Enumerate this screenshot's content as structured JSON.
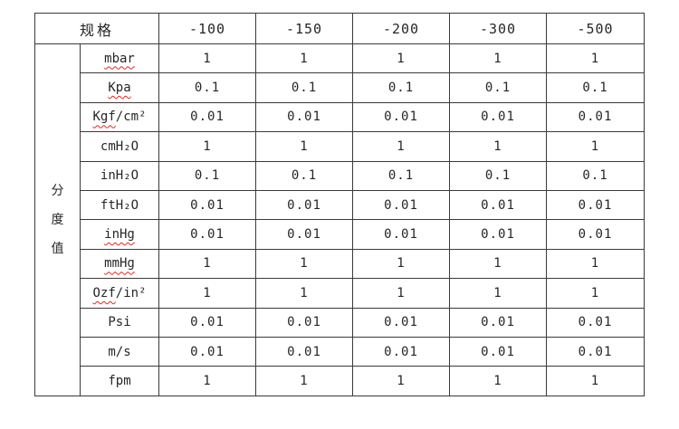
{
  "document": {
    "colors": {
      "background": "#ffffff",
      "border": "#3a3a3a",
      "text": "#262626",
      "squiggle": "#e8251a"
    },
    "table": {
      "spec_header": "规格",
      "columns": [
        "-100",
        "-150",
        "-200",
        "-300",
        "-500"
      ],
      "group_label_chars": [
        "分",
        "度",
        "值"
      ],
      "rows": [
        {
          "unit_wavy": "mbar",
          "unit_rest": "",
          "values": [
            "1",
            "1",
            "1",
            "1",
            "1"
          ]
        },
        {
          "unit_wavy": "Kpa",
          "unit_rest": "",
          "values": [
            "0.1",
            "0.1",
            "0.1",
            "0.1",
            "0.1"
          ]
        },
        {
          "unit_wavy": "Kgf",
          "unit_rest": "/cm²",
          "values": [
            "0.01",
            "0.01",
            "0.01",
            "0.01",
            "0.01"
          ]
        },
        {
          "unit_wavy": "",
          "unit_rest": "cmH₂O",
          "values": [
            "1",
            "1",
            "1",
            "1",
            "1"
          ]
        },
        {
          "unit_wavy": "",
          "unit_rest": "inH₂O",
          "values": [
            "0.1",
            "0.1",
            "0.1",
            "0.1",
            "0.1"
          ]
        },
        {
          "unit_wavy": "",
          "unit_rest": "ftH₂O",
          "values": [
            "0.01",
            "0.01",
            "0.01",
            "0.01",
            "0.01"
          ]
        },
        {
          "unit_wavy": "inHg",
          "unit_rest": "",
          "values": [
            "0.01",
            "0.01",
            "0.01",
            "0.01",
            "0.01"
          ]
        },
        {
          "unit_wavy": "mmHg",
          "unit_rest": "",
          "values": [
            "1",
            "1",
            "1",
            "1",
            "1"
          ]
        },
        {
          "unit_wavy": "Ozf",
          "unit_rest": "/in²",
          "values": [
            "1",
            "1",
            "1",
            "1",
            "1"
          ]
        },
        {
          "unit_wavy": "",
          "unit_rest": "Psi",
          "values": [
            "0.01",
            "0.01",
            "0.01",
            "0.01",
            "0.01"
          ]
        },
        {
          "unit_wavy": "",
          "unit_rest": "m/s",
          "values": [
            "0.01",
            "0.01",
            "0.01",
            "0.01",
            "0.01"
          ]
        },
        {
          "unit_wavy": "",
          "unit_rest": "fpm",
          "values": [
            "1",
            "1",
            "1",
            "1",
            "1"
          ]
        }
      ]
    }
  }
}
